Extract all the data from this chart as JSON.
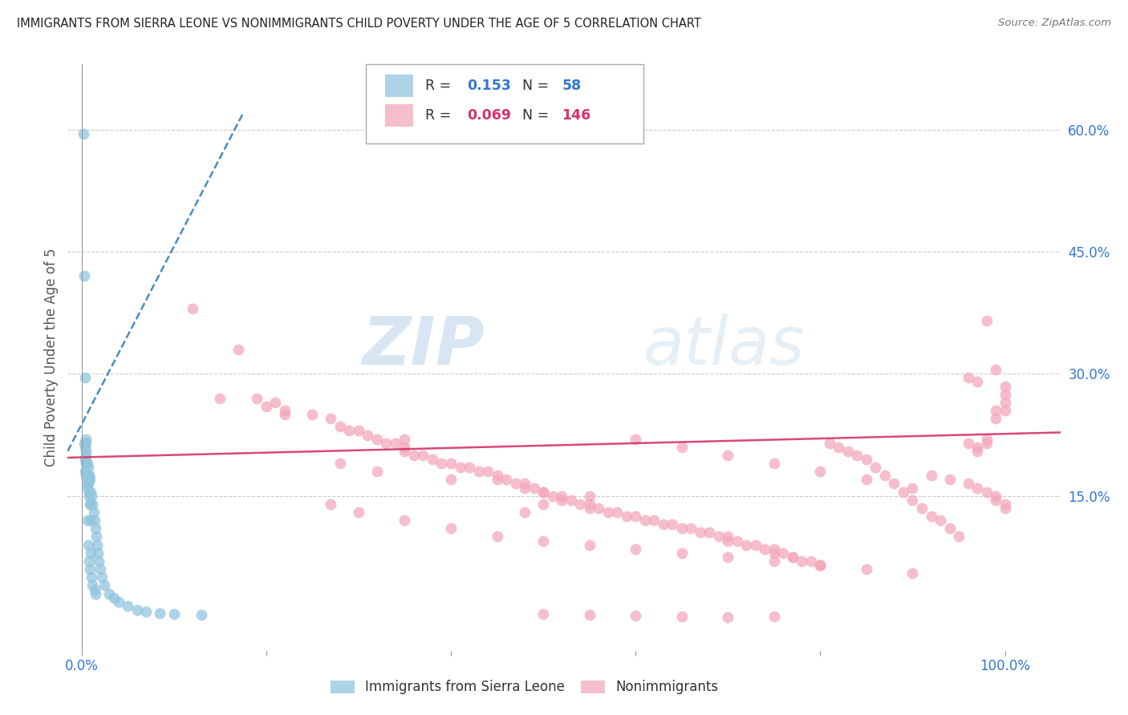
{
  "title": "IMMIGRANTS FROM SIERRA LEONE VS NONIMMIGRANTS CHILD POVERTY UNDER THE AGE OF 5 CORRELATION CHART",
  "source": "Source: ZipAtlas.com",
  "ylabel": "Child Poverty Under the Age of 5",
  "y_tick_right": [
    0.15,
    0.3,
    0.45,
    0.6
  ],
  "y_tick_right_labels": [
    "15.0%",
    "30.0%",
    "45.0%",
    "60.0%"
  ],
  "xlim": [
    -0.015,
    1.06
  ],
  "ylim": [
    -0.04,
    0.68
  ],
  "blue_color": "#92c5de",
  "pink_color": "#f4a8bb",
  "blue_line_color": "#3182bd",
  "pink_line_color": "#d6336c",
  "title_color": "#222222",
  "axis_label_color": "#3375d6",
  "grid_color": "#cccccc",
  "watermark_zip": "ZIP",
  "watermark_atlas": "atlas",
  "blue_trend_x0": -0.015,
  "blue_trend_x1": 0.175,
  "blue_trend_y0": 0.205,
  "blue_trend_y1": 0.62,
  "pink_trend_x0": -0.015,
  "pink_trend_x1": 1.06,
  "pink_trend_y0": 0.197,
  "pink_trend_y1": 0.228,
  "blue_scatter_x": [
    0.002,
    0.003,
    0.003,
    0.004,
    0.004,
    0.004,
    0.004,
    0.005,
    0.005,
    0.005,
    0.005,
    0.005,
    0.006,
    0.006,
    0.006,
    0.007,
    0.007,
    0.007,
    0.007,
    0.008,
    0.008,
    0.008,
    0.009,
    0.009,
    0.009,
    0.01,
    0.01,
    0.01,
    0.011,
    0.011,
    0.012,
    0.012,
    0.013,
    0.014,
    0.014,
    0.015,
    0.015,
    0.016,
    0.017,
    0.018,
    0.019,
    0.02,
    0.022,
    0.025,
    0.03,
    0.035,
    0.04,
    0.05,
    0.06,
    0.07,
    0.085,
    0.1,
    0.13,
    0.005,
    0.006,
    0.007,
    0.008,
    0.01
  ],
  "blue_scatter_y": [
    0.595,
    0.42,
    0.215,
    0.295,
    0.21,
    0.195,
    0.18,
    0.215,
    0.205,
    0.2,
    0.19,
    0.175,
    0.165,
    0.16,
    0.12,
    0.185,
    0.175,
    0.165,
    0.09,
    0.175,
    0.155,
    0.07,
    0.17,
    0.14,
    0.06,
    0.155,
    0.12,
    0.08,
    0.15,
    0.05,
    0.14,
    0.04,
    0.13,
    0.12,
    0.035,
    0.11,
    0.03,
    0.1,
    0.09,
    0.08,
    0.07,
    0.06,
    0.05,
    0.04,
    0.03,
    0.025,
    0.02,
    0.015,
    0.01,
    0.008,
    0.006,
    0.005,
    0.004,
    0.22,
    0.19,
    0.17,
    0.15,
    0.14
  ],
  "pink_scatter_x": [
    0.12,
    0.17,
    0.19,
    0.21,
    0.22,
    0.25,
    0.27,
    0.28,
    0.29,
    0.3,
    0.31,
    0.32,
    0.33,
    0.34,
    0.35,
    0.35,
    0.36,
    0.37,
    0.38,
    0.39,
    0.4,
    0.41,
    0.42,
    0.43,
    0.44,
    0.45,
    0.45,
    0.46,
    0.47,
    0.48,
    0.48,
    0.49,
    0.5,
    0.5,
    0.51,
    0.52,
    0.52,
    0.53,
    0.54,
    0.55,
    0.55,
    0.56,
    0.57,
    0.58,
    0.59,
    0.6,
    0.61,
    0.62,
    0.63,
    0.64,
    0.65,
    0.66,
    0.67,
    0.68,
    0.69,
    0.7,
    0.7,
    0.71,
    0.72,
    0.73,
    0.74,
    0.75,
    0.75,
    0.76,
    0.77,
    0.77,
    0.78,
    0.79,
    0.8,
    0.8,
    0.81,
    0.82,
    0.83,
    0.84,
    0.85,
    0.86,
    0.87,
    0.88,
    0.89,
    0.9,
    0.91,
    0.92,
    0.93,
    0.94,
    0.95,
    0.96,
    0.97,
    0.97,
    0.98,
    0.98,
    0.99,
    0.99,
    1.0,
    1.0,
    1.0,
    1.0,
    0.96,
    0.97,
    0.98,
    0.99,
    0.55,
    0.5,
    0.48,
    0.15,
    0.2,
    0.22,
    0.27,
    0.3,
    0.35,
    0.4,
    0.45,
    0.5,
    0.55,
    0.6,
    0.65,
    0.7,
    0.75,
    0.8,
    0.85,
    0.9,
    0.92,
    0.94,
    0.96,
    0.97,
    0.98,
    0.99,
    0.99,
    1.0,
    1.0,
    0.35,
    0.28,
    0.32,
    0.4,
    0.6,
    0.65,
    0.7,
    0.75,
    0.8,
    0.85,
    0.9,
    0.5,
    0.55,
    0.6,
    0.65,
    0.7,
    0.75
  ],
  "pink_scatter_y": [
    0.38,
    0.33,
    0.27,
    0.265,
    0.255,
    0.25,
    0.245,
    0.235,
    0.23,
    0.23,
    0.225,
    0.22,
    0.215,
    0.215,
    0.21,
    0.205,
    0.2,
    0.2,
    0.195,
    0.19,
    0.19,
    0.185,
    0.185,
    0.18,
    0.18,
    0.175,
    0.17,
    0.17,
    0.165,
    0.165,
    0.16,
    0.16,
    0.155,
    0.155,
    0.15,
    0.15,
    0.145,
    0.145,
    0.14,
    0.14,
    0.135,
    0.135,
    0.13,
    0.13,
    0.125,
    0.125,
    0.12,
    0.12,
    0.115,
    0.115,
    0.11,
    0.11,
    0.105,
    0.105,
    0.1,
    0.1,
    0.095,
    0.095,
    0.09,
    0.09,
    0.085,
    0.085,
    0.08,
    0.08,
    0.075,
    0.075,
    0.07,
    0.07,
    0.065,
    0.065,
    0.215,
    0.21,
    0.205,
    0.2,
    0.195,
    0.185,
    0.175,
    0.165,
    0.155,
    0.145,
    0.135,
    0.125,
    0.12,
    0.11,
    0.1,
    0.215,
    0.21,
    0.205,
    0.22,
    0.215,
    0.255,
    0.245,
    0.285,
    0.275,
    0.265,
    0.255,
    0.295,
    0.29,
    0.365,
    0.305,
    0.15,
    0.14,
    0.13,
    0.27,
    0.26,
    0.25,
    0.14,
    0.13,
    0.12,
    0.11,
    0.1,
    0.095,
    0.09,
    0.085,
    0.08,
    0.075,
    0.07,
    0.065,
    0.06,
    0.055,
    0.175,
    0.17,
    0.165,
    0.16,
    0.155,
    0.15,
    0.145,
    0.14,
    0.135,
    0.22,
    0.19,
    0.18,
    0.17,
    0.22,
    0.21,
    0.2,
    0.19,
    0.18,
    0.17,
    0.16,
    0.005,
    0.004,
    0.003,
    0.002,
    0.001,
    0.002
  ]
}
